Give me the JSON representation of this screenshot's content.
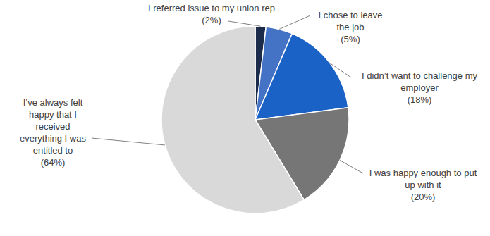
{
  "chart_data": {
    "type": "pie",
    "categories": [
      "I referred issue to my union rep",
      "I chose to leave the job",
      "I didn’t want to challenge my employer",
      "I was happy enough to put up with it",
      "I’ve always felt happy that I received everything I was entitled to"
    ],
    "values": [
      2,
      5,
      18,
      20,
      64
    ],
    "value_labels": [
      "(2%)",
      "(5%)",
      "(18%)",
      "(20%)",
      "(64%)"
    ],
    "colors": [
      "#1c2b4a",
      "#4472c4",
      "#1b62c6",
      "#767676",
      "#d9d9d9"
    ],
    "data_labels": true
  }
}
